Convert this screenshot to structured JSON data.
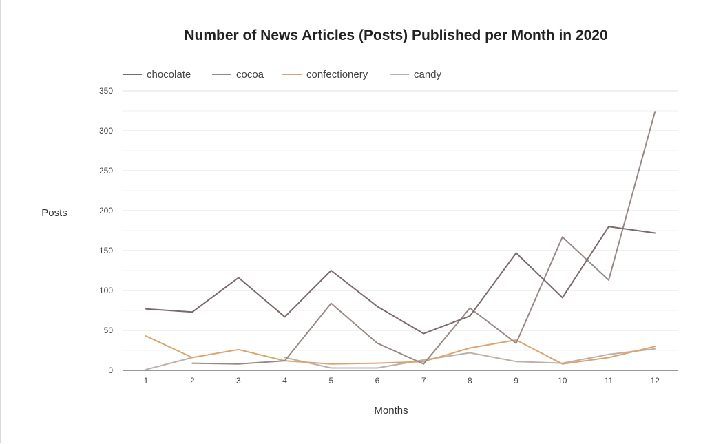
{
  "chart_data": {
    "type": "line",
    "title": "Number of News Articles (Posts) Published per Month in 2020",
    "xlabel": "Months",
    "ylabel": "Posts",
    "x": [
      1,
      2,
      3,
      4,
      5,
      6,
      7,
      8,
      9,
      10,
      11,
      12
    ],
    "ylim": [
      0,
      350
    ],
    "yticks": [
      0,
      50,
      100,
      150,
      200,
      250,
      300,
      350
    ],
    "grid": true,
    "legend_position": "top-left",
    "series": [
      {
        "name": "chocolate",
        "color": "#7a6b6b",
        "values": [
          77,
          73,
          116,
          67,
          125,
          80,
          46,
          68,
          147,
          91,
          180,
          172
        ]
      },
      {
        "name": "cocoa",
        "color": "#978a86",
        "values": [
          null,
          9,
          8,
          12,
          84,
          34,
          8,
          78,
          34,
          167,
          113,
          324
        ]
      },
      {
        "name": "confectionery",
        "color": "#d9a672",
        "values": [
          43,
          16,
          26,
          12,
          8,
          9,
          11,
          28,
          38,
          8,
          16,
          30
        ]
      },
      {
        "name": "candy",
        "color": "#bdb0ab",
        "values": [
          1,
          16,
          null,
          16,
          3,
          3,
          13,
          22,
          11,
          9,
          20,
          27
        ]
      }
    ]
  }
}
